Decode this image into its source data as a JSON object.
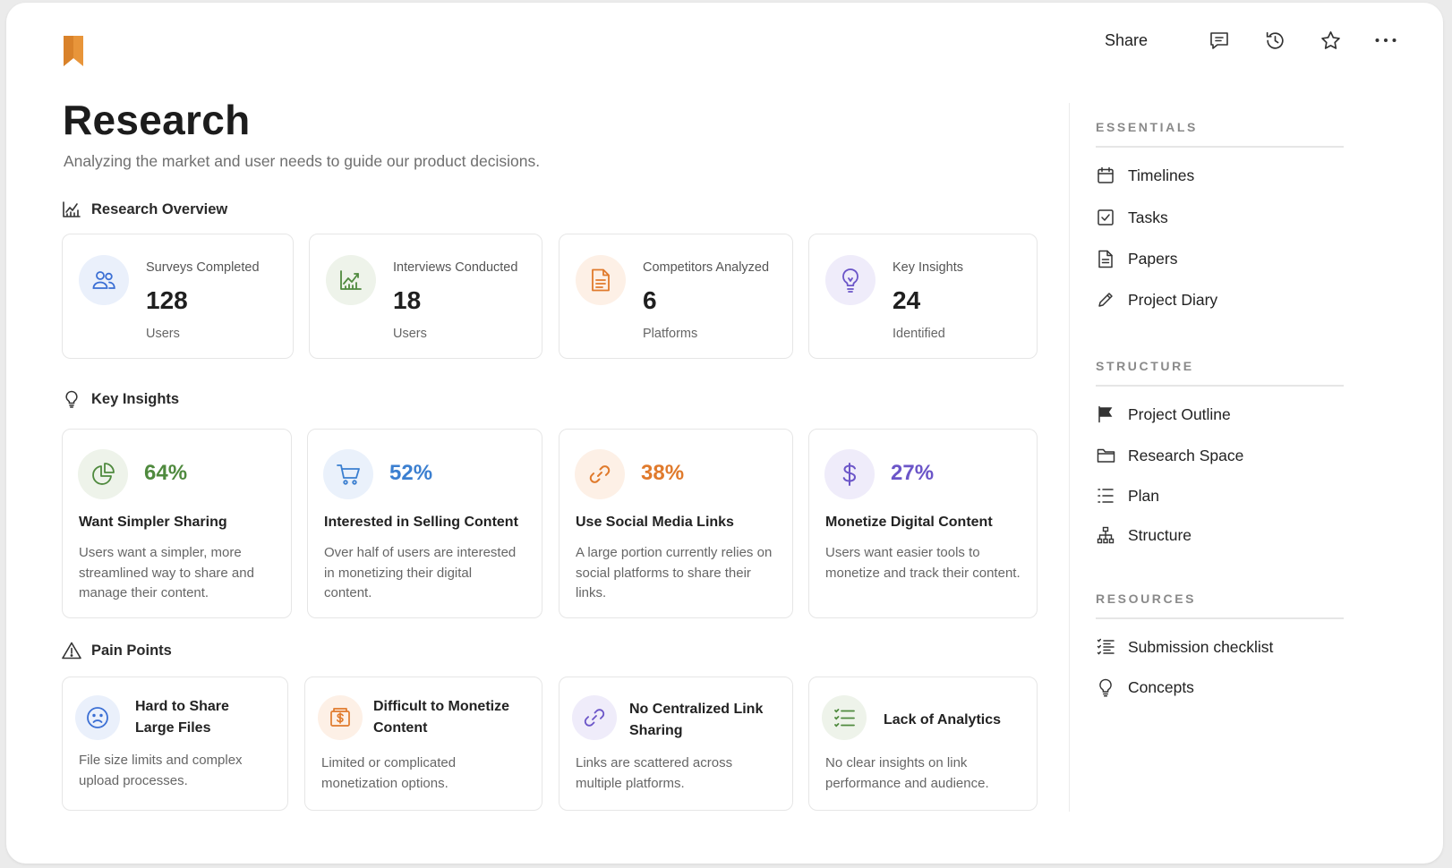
{
  "header": {
    "share_label": "Share",
    "icons": [
      "comment-icon",
      "history-icon",
      "star-icon",
      "more-icon"
    ],
    "logo_color": "#E8953A"
  },
  "page": {
    "title": "Research",
    "subtitle": "Analyzing the market and user needs to guide our product decisions."
  },
  "overview": {
    "heading": "Research Overview",
    "cards": [
      {
        "label": "Surveys Completed",
        "value": "128",
        "unit": "Users",
        "icon": "users-icon",
        "color": "#3B6FD4"
      },
      {
        "label": "Interviews Conducted",
        "value": "18",
        "unit": "Users",
        "icon": "line-chart-icon",
        "color": "#4F8A3E"
      },
      {
        "label": "Competitors Analyzed",
        "value": "6",
        "unit": "Platforms",
        "icon": "document-icon",
        "color": "#E07A2C"
      },
      {
        "label": "Key Insights",
        "value": "24",
        "unit": "Identified",
        "icon": "lightbulb-icon",
        "color": "#6B55C8"
      }
    ]
  },
  "insights": {
    "heading": "Key Insights",
    "cards": [
      {
        "percent": "64%",
        "title": "Want Simpler Sharing",
        "desc": "Users want a simpler, more streamlined way to share and manage their content.",
        "icon": "pie-chart-icon",
        "color": "#4F8A3E"
      },
      {
        "percent": "52%",
        "title": "Interested in Selling Content",
        "desc": "Over half of users are interested in monetizing their digital content.",
        "icon": "cart-icon",
        "color": "#3B7FD0"
      },
      {
        "percent": "38%",
        "title": "Use Social Media Links",
        "desc": "A large portion currently relies on social platforms to share their links.",
        "icon": "link-icon",
        "color": "#E07A2C"
      },
      {
        "percent": "27%",
        "title": "Monetize Digital Content",
        "desc": "Users want easier tools to monetize and track their content.",
        "icon": "dollar-icon",
        "color": "#6B55C8"
      }
    ]
  },
  "pain_points": {
    "heading": "Pain Points",
    "cards": [
      {
        "title": "Hard to Share Large Files",
        "desc": "File size limits and complex upload processes.",
        "icon": "sad-face-icon",
        "color": "#3B6FD4"
      },
      {
        "title": "Difficult to Monetize Content",
        "desc": "Limited or complicated monetization options.",
        "icon": "money-icon",
        "color": "#E07A2C"
      },
      {
        "title": "No Centralized Link Sharing",
        "desc": "Links are scattered across multiple platforms.",
        "icon": "link-icon",
        "color": "#6B55C8"
      },
      {
        "title": "Lack of Analytics",
        "desc": "No clear insights on link performance and audience.",
        "icon": "list-icon",
        "color": "#4F8A3E"
      }
    ]
  },
  "sidebar": {
    "sections": [
      {
        "heading": "ESSENTIALS",
        "items": [
          {
            "label": "Timelines",
            "icon": "calendar-icon"
          },
          {
            "label": "Tasks",
            "icon": "checkbox-icon"
          },
          {
            "label": "Papers",
            "icon": "document-icon"
          },
          {
            "label": "Project Diary",
            "icon": "pencil-icon"
          }
        ]
      },
      {
        "heading": "STRUCTURE",
        "items": [
          {
            "label": "Project Outline",
            "icon": "flag-icon"
          },
          {
            "label": "Research Space",
            "icon": "folder-icon"
          },
          {
            "label": "Plan",
            "icon": "list-icon"
          },
          {
            "label": "Structure",
            "icon": "hierarchy-icon"
          }
        ]
      },
      {
        "heading": "RESOURCES",
        "items": [
          {
            "label": "Submission checklist",
            "icon": "checklist-icon"
          },
          {
            "label": "Concepts",
            "icon": "lightbulb-icon"
          }
        ]
      }
    ]
  }
}
